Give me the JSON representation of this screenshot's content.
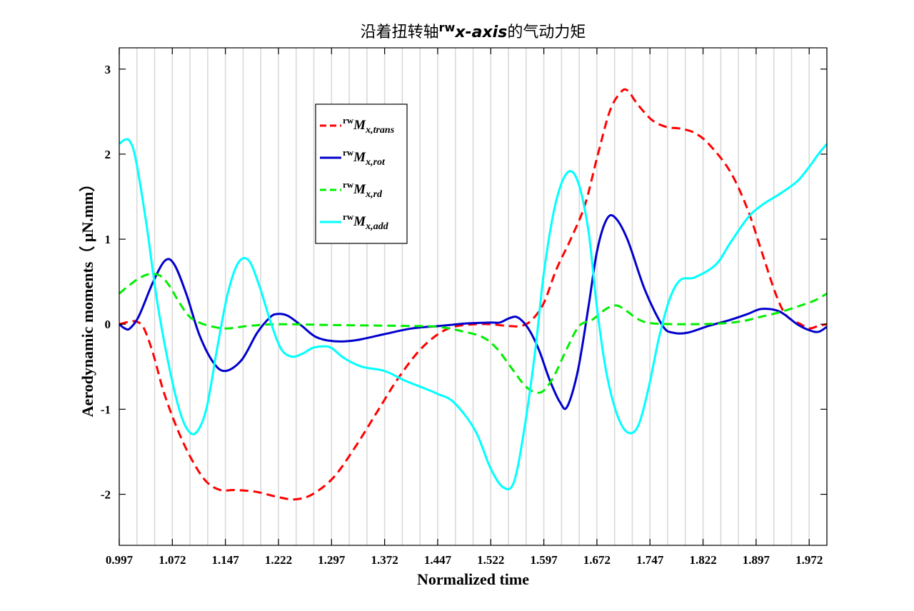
{
  "chart_data": {
    "type": "line",
    "title": {
      "prefix": "沿着扭转轴",
      "superscript": "rw",
      "axis": "x-axis",
      "suffix": "的气动力矩"
    },
    "xlabel": "Normalized time",
    "ylabel": "Aerodynamic moments（ μN.mm）",
    "xlim": [
      0.997,
      1.997
    ],
    "ylim": [
      -2.6,
      3.25
    ],
    "xticks": [
      0.997,
      1.072,
      1.147,
      1.222,
      1.297,
      1.372,
      1.447,
      1.522,
      1.597,
      1.672,
      1.747,
      1.822,
      1.897,
      1.972
    ],
    "xtick_labels": [
      "0.997",
      "1.072",
      "1.147",
      "1.222",
      "1.297",
      "1.372",
      "1.447",
      "1.522",
      "1.597",
      "1.672",
      "1.747",
      "1.822",
      "1.897",
      "1.972"
    ],
    "yticks": [
      -2,
      -1,
      0,
      1,
      2,
      3
    ],
    "ytick_labels": [
      "-2",
      "-1",
      "0",
      "1",
      "2",
      "3"
    ],
    "grid": "vertical lines every 0.025",
    "legend_position": "upper-center-left",
    "series": [
      {
        "name": "rwMx,trans",
        "legend": {
          "sup": "rw",
          "main": "M",
          "sub": "x,trans"
        },
        "color": "#ff0000",
        "style": "dashed",
        "x": [
          0.997,
          1.012,
          1.022,
          1.032,
          1.045,
          1.06,
          1.08,
          1.1,
          1.12,
          1.14,
          1.16,
          1.19,
          1.22,
          1.245,
          1.27,
          1.3,
          1.33,
          1.36,
          1.39,
          1.42,
          1.447,
          1.47,
          1.5,
          1.522,
          1.545,
          1.565,
          1.58,
          1.597,
          1.615,
          1.635,
          1.655,
          1.672,
          1.69,
          1.705,
          1.715,
          1.73,
          1.75,
          1.77,
          1.79,
          1.81,
          1.83,
          1.86,
          1.885,
          1.905,
          1.925,
          1.94,
          1.96,
          1.972,
          1.985,
          1.997
        ],
        "y": [
          0.0,
          0.03,
          0.03,
          -0.05,
          -0.35,
          -0.8,
          -1.25,
          -1.6,
          -1.85,
          -1.95,
          -1.95,
          -1.97,
          -2.03,
          -2.06,
          -2.0,
          -1.8,
          -1.45,
          -1.05,
          -0.65,
          -0.32,
          -0.12,
          -0.03,
          0.0,
          0.0,
          -0.02,
          -0.02,
          0.05,
          0.25,
          0.65,
          1.0,
          1.4,
          1.95,
          2.5,
          2.72,
          2.75,
          2.58,
          2.4,
          2.32,
          2.3,
          2.25,
          2.12,
          1.8,
          1.35,
          0.85,
          0.35,
          0.1,
          0.0,
          -0.05,
          -0.02,
          0.0
        ]
      },
      {
        "name": "rwMx,rot",
        "legend": {
          "sup": "rw",
          "main": "M",
          "sub": "x,rot"
        },
        "color": "#0000cd",
        "style": "solid",
        "x": [
          0.997,
          1.005,
          1.012,
          1.025,
          1.045,
          1.062,
          1.075,
          1.092,
          1.11,
          1.13,
          1.147,
          1.17,
          1.192,
          1.21,
          1.22,
          1.235,
          1.255,
          1.275,
          1.3,
          1.33,
          1.37,
          1.41,
          1.45,
          1.49,
          1.522,
          1.535,
          1.548,
          1.56,
          1.575,
          1.59,
          1.605,
          1.62,
          1.63,
          1.645,
          1.66,
          1.672,
          1.685,
          1.697,
          1.715,
          1.74,
          1.765,
          1.78,
          1.8,
          1.83,
          1.86,
          1.885,
          1.905,
          1.93,
          1.955,
          1.972,
          1.985,
          1.997
        ],
        "y": [
          0.0,
          -0.05,
          -0.05,
          0.1,
          0.5,
          0.75,
          0.7,
          0.35,
          -0.12,
          -0.45,
          -0.55,
          -0.42,
          -0.1,
          0.08,
          0.12,
          0.1,
          -0.02,
          -0.15,
          -0.2,
          -0.19,
          -0.12,
          -0.05,
          -0.02,
          0.01,
          0.02,
          0.02,
          0.07,
          0.08,
          -0.05,
          -0.3,
          -0.65,
          -0.92,
          -0.97,
          -0.55,
          0.2,
          0.85,
          1.22,
          1.26,
          1.0,
          0.4,
          -0.02,
          -0.1,
          -0.1,
          -0.02,
          0.05,
          0.12,
          0.18,
          0.15,
          0.0,
          -0.07,
          -0.09,
          -0.03
        ]
      },
      {
        "name": "rwMx,rd",
        "legend": {
          "sup": "rw",
          "main": "M",
          "sub": "x,rd"
        },
        "color": "#00ee00",
        "style": "dashed",
        "x": [
          0.997,
          1.01,
          1.025,
          1.04,
          1.055,
          1.068,
          1.08,
          1.095,
          1.11,
          1.13,
          1.15,
          1.18,
          1.222,
          1.3,
          1.4,
          1.447,
          1.48,
          1.51,
          1.53,
          1.55,
          1.57,
          1.585,
          1.597,
          1.612,
          1.63,
          1.647,
          1.665,
          1.685,
          1.7,
          1.715,
          1.73,
          1.75,
          1.8,
          1.85,
          1.88,
          1.9,
          1.93,
          1.96,
          1.98,
          1.997
        ],
        "y": [
          0.36,
          0.45,
          0.54,
          0.59,
          0.57,
          0.45,
          0.28,
          0.1,
          0.02,
          -0.03,
          -0.05,
          -0.02,
          0.0,
          -0.01,
          -0.02,
          -0.03,
          -0.08,
          -0.15,
          -0.28,
          -0.5,
          -0.72,
          -0.8,
          -0.78,
          -0.6,
          -0.28,
          -0.02,
          0.05,
          0.18,
          0.22,
          0.15,
          0.06,
          0.01,
          0.0,
          0.01,
          0.04,
          0.08,
          0.14,
          0.22,
          0.28,
          0.36
        ]
      },
      {
        "name": "rwMx,add",
        "legend": {
          "sup": "rw",
          "main": "M",
          "sub": "x,add"
        },
        "color": "#00ffff",
        "style": "solid",
        "x": [
          0.997,
          1.005,
          1.012,
          1.02,
          1.035,
          1.05,
          1.065,
          1.08,
          1.092,
          1.105,
          1.12,
          1.135,
          1.15,
          1.165,
          1.18,
          1.195,
          1.21,
          1.225,
          1.24,
          1.255,
          1.27,
          1.285,
          1.297,
          1.315,
          1.34,
          1.372,
          1.4,
          1.43,
          1.447,
          1.47,
          1.5,
          1.522,
          1.54,
          1.555,
          1.57,
          1.585,
          1.597,
          1.613,
          1.63,
          1.645,
          1.66,
          1.672,
          1.685,
          1.7,
          1.715,
          1.73,
          1.745,
          1.76,
          1.775,
          1.79,
          1.81,
          1.84,
          1.86,
          1.885,
          1.905,
          1.93,
          1.955,
          1.972,
          1.985,
          1.997
        ],
        "y": [
          2.12,
          2.17,
          2.15,
          1.95,
          1.2,
          0.3,
          -0.4,
          -0.95,
          -1.22,
          -1.28,
          -1.0,
          -0.3,
          0.35,
          0.72,
          0.75,
          0.45,
          0.05,
          -0.28,
          -0.38,
          -0.35,
          -0.28,
          -0.26,
          -0.28,
          -0.4,
          -0.5,
          -0.55,
          -0.66,
          -0.76,
          -0.82,
          -0.92,
          -1.25,
          -1.7,
          -1.92,
          -1.85,
          -1.2,
          -0.3,
          0.6,
          1.4,
          1.78,
          1.68,
          1.1,
          0.2,
          -0.55,
          -1.05,
          -1.27,
          -1.2,
          -0.75,
          -0.15,
          0.3,
          0.52,
          0.55,
          0.7,
          0.95,
          1.25,
          1.4,
          1.53,
          1.68,
          1.85,
          2.0,
          2.12
        ]
      }
    ]
  }
}
